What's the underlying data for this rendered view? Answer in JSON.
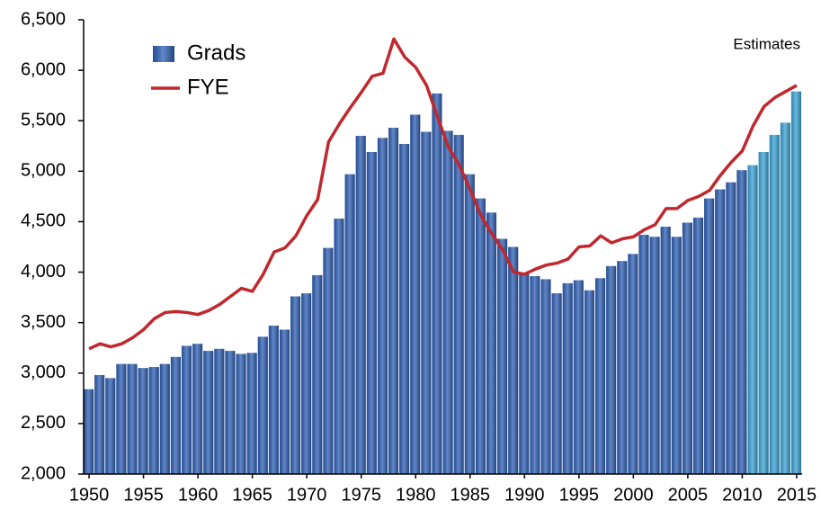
{
  "chart_data": {
    "type": "bar",
    "annotation": "Estimates",
    "x": [
      1950,
      1951,
      1952,
      1953,
      1954,
      1955,
      1956,
      1957,
      1958,
      1959,
      1960,
      1961,
      1962,
      1963,
      1964,
      1965,
      1966,
      1967,
      1968,
      1969,
      1970,
      1971,
      1972,
      1973,
      1974,
      1975,
      1976,
      1977,
      1978,
      1979,
      1980,
      1981,
      1982,
      1983,
      1984,
      1985,
      1986,
      1987,
      1988,
      1989,
      1990,
      1991,
      1992,
      1993,
      1994,
      1995,
      1996,
      1997,
      1998,
      1999,
      2000,
      2001,
      2002,
      2003,
      2004,
      2005,
      2006,
      2007,
      2008,
      2009,
      2010,
      2011,
      2012,
      2013,
      2014,
      2015
    ],
    "series": [
      {
        "name": "Grads",
        "type": "bar",
        "color": "#2f5fb3",
        "colors": [
          "#2f5fb3",
          "#2f5fb3",
          "#2f5fb3",
          "#2f5fb3",
          "#2f5fb3",
          "#2f5fb3",
          "#2f5fb3",
          "#2f5fb3",
          "#2f5fb3",
          "#2f5fb3",
          "#2f5fb3",
          "#2f5fb3",
          "#2f5fb3",
          "#2f5fb3",
          "#2f5fb3",
          "#2f5fb3",
          "#2f5fb3",
          "#2f5fb3",
          "#2f5fb3",
          "#2f5fb3",
          "#2f5fb3",
          "#2f5fb3",
          "#2f5fb3",
          "#2f5fb3",
          "#2f5fb3",
          "#2f5fb3",
          "#2f5fb3",
          "#2f5fb3",
          "#2f5fb3",
          "#2f5fb3",
          "#2f5fb3",
          "#2f5fb3",
          "#2f5fb3",
          "#2f5fb3",
          "#2f5fb3",
          "#2f5fb3",
          "#2f5fb3",
          "#2f5fb3",
          "#2f5fb3",
          "#2f5fb3",
          "#2f5fb3",
          "#2f5fb3",
          "#2f5fb3",
          "#2f5fb3",
          "#2f5fb3",
          "#2f5fb3",
          "#2f5fb3",
          "#2f5fb3",
          "#2f5fb3",
          "#2f5fb3",
          "#2f5fb3",
          "#2f5fb3",
          "#2f5fb3",
          "#2f5fb3",
          "#2f5fb3",
          "#2f5fb3",
          "#2f5fb3",
          "#2f5fb3",
          "#2f5fb3",
          "#2f5fb3",
          "#2f5fb3",
          "#3aa2d4",
          "#3aa2d4",
          "#3aa2d4",
          "#3aa2d4",
          "#3aa2d4"
        ],
        "values": [
          2840,
          2980,
          2950,
          3090,
          3090,
          3050,
          3060,
          3090,
          3160,
          3270,
          3290,
          3220,
          3240,
          3220,
          3190,
          3200,
          3360,
          3470,
          3430,
          3760,
          3790,
          3970,
          4240,
          4530,
          4970,
          5350,
          5190,
          5330,
          5430,
          5270,
          5560,
          5390,
          5770,
          5400,
          5360,
          4970,
          4730,
          4590,
          4330,
          4250,
          3990,
          3960,
          3930,
          3790,
          3890,
          3920,
          3820,
          3940,
          4060,
          4110,
          4180,
          4370,
          4350,
          4450,
          4350,
          4490,
          4540,
          4730,
          4820,
          4890,
          5010,
          5060,
          5190,
          5360,
          5480,
          5790
        ]
      },
      {
        "name": "FYE",
        "type": "line",
        "color": "#c0282d",
        "values": [
          3240,
          3290,
          3260,
          3290,
          3350,
          3430,
          3540,
          3600,
          3610,
          3600,
          3580,
          3620,
          3680,
          3760,
          3840,
          3810,
          3980,
          4200,
          4240,
          4360,
          4560,
          4720,
          5290,
          5470,
          5630,
          5780,
          5940,
          5970,
          6310,
          6130,
          6030,
          5850,
          5540,
          5240,
          5060,
          4820,
          4560,
          4380,
          4220,
          4000,
          3980,
          4030,
          4070,
          4090,
          4130,
          4250,
          4260,
          4360,
          4290,
          4330,
          4350,
          4420,
          4470,
          4630,
          4630,
          4710,
          4750,
          4810,
          4960,
          5090,
          5200,
          5450,
          5640,
          5730,
          5790,
          5850
        ]
      }
    ],
    "xlim": [
      1949.5,
      2015.5
    ],
    "xticks": [
      1950,
      1955,
      1960,
      1965,
      1970,
      1975,
      1980,
      1985,
      1990,
      1995,
      2000,
      2005,
      2010,
      2015
    ],
    "ylim": [
      2000,
      6500
    ],
    "yticks": [
      {
        "value": 2000,
        "label": "2,000"
      },
      {
        "value": 2500,
        "label": "2,500"
      },
      {
        "value": 3000,
        "label": "3,000"
      },
      {
        "value": 3500,
        "label": "3,500"
      },
      {
        "value": 4000,
        "label": "4,000"
      },
      {
        "value": 4500,
        "label": "4,500"
      },
      {
        "value": 5000,
        "label": "5,000"
      },
      {
        "value": 5500,
        "label": "5,500"
      },
      {
        "value": 6000,
        "label": "6,000"
      },
      {
        "value": 6500,
        "label": "6,500"
      }
    ],
    "grid": false,
    "legend": "top-left"
  }
}
